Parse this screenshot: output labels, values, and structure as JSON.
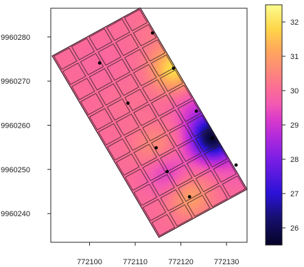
{
  "chart_data": {
    "type": "heatmap",
    "title": "",
    "xlabel": "",
    "ylabel": "",
    "xlim": [
      772091.5,
      772134.5
    ],
    "ylim": [
      9960233.5,
      9960286.5
    ],
    "x_ticks": [
      772100,
      772110,
      772120,
      772130
    ],
    "y_ticks": [
      9960240,
      9960250,
      9960260,
      9960270,
      9960280
    ],
    "x_tick_labels": [
      "772100",
      "772110",
      "772120",
      "772130"
    ],
    "y_tick_labels": [
      "9960240",
      "9960250",
      "9960260",
      "9960270",
      "9960280"
    ],
    "plot_region": {
      "corners": [
        [
          772091.8,
          9960275.7
        ],
        [
          772111.1,
          9960286.6
        ],
        [
          772134.5,
          9960245.5
        ],
        [
          772115.2,
          9960234.6
        ]
      ]
    },
    "grid": {
      "rows": 12,
      "cols": 5
    },
    "base_value": 30.0,
    "points": [
      {
        "x": 772102.2,
        "y": 9960274.1,
        "value": 29.9
      },
      {
        "x": 772108.4,
        "y": 9960265.0,
        "value": 30.1
      },
      {
        "x": 772113.8,
        "y": 9960280.9,
        "value": 30.2
      },
      {
        "x": 772118.4,
        "y": 9960272.9,
        "value": 31.9
      },
      {
        "x": 772114.6,
        "y": 9960254.9,
        "value": 30.7
      },
      {
        "x": 772123.4,
        "y": 9960263.2,
        "value": 29.2
      },
      {
        "x": 772126.9,
        "y": 9960257.1,
        "value": 25.8
      },
      {
        "x": 772117.0,
        "y": 9960249.5,
        "value": 29.1
      },
      {
        "x": 772132.1,
        "y": 9960251.0,
        "value": 29.6
      },
      {
        "x": 772121.9,
        "y": 9960243.8,
        "value": 31.0
      }
    ],
    "colorbar": {
      "min": 25.5,
      "max": 32.5,
      "ticks": [
        26,
        27,
        28,
        29,
        30,
        31,
        32
      ],
      "tick_labels": [
        "26",
        "27",
        "28",
        "29",
        "30",
        "31",
        "32"
      ],
      "colors": [
        [
          25.5,
          "#050327"
        ],
        [
          26.3,
          "#16106f"
        ],
        [
          27.0,
          "#2a12d6"
        ],
        [
          28.0,
          "#7a1ee5"
        ],
        [
          28.7,
          "#b52bdb"
        ],
        [
          29.2,
          "#dc3dc8"
        ],
        [
          29.6,
          "#f25ab2"
        ],
        [
          30.0,
          "#fb6a98"
        ],
        [
          30.6,
          "#fd8a78"
        ],
        [
          31.2,
          "#ffa95a"
        ],
        [
          31.8,
          "#ffd64a"
        ],
        [
          32.5,
          "#fcfc8e"
        ]
      ]
    },
    "colors": {
      "outline": "#2b1d26",
      "point": "#000000",
      "axis": "#222222"
    }
  }
}
